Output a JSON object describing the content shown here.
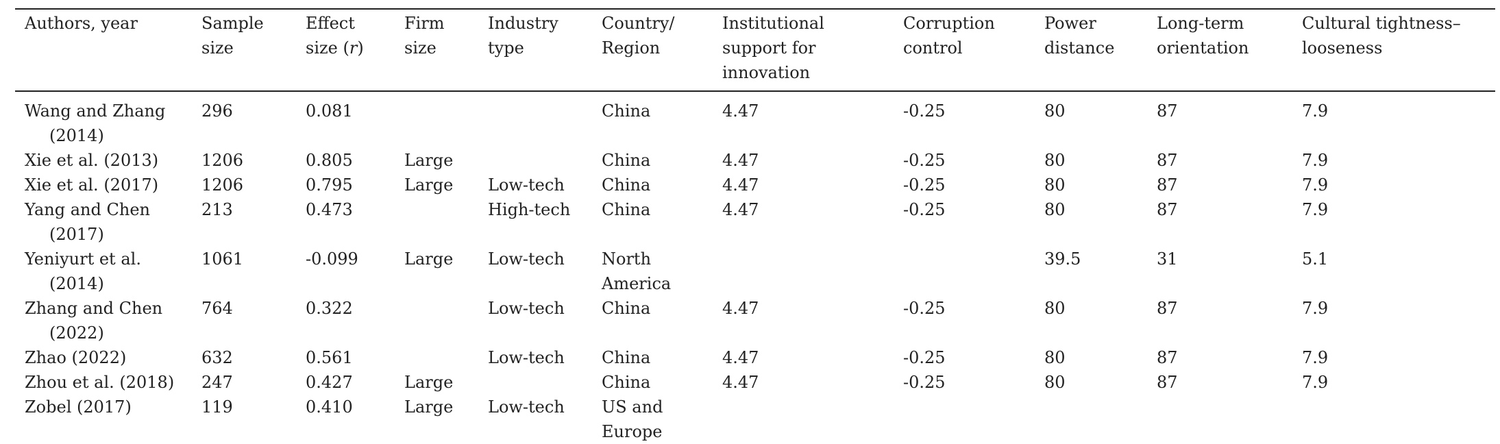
{
  "headers": {
    "authors": "Authors, year",
    "sample_size": "Sample size",
    "effect_prefix": "Effect size (",
    "effect_r": "r",
    "effect_suffix": ")",
    "firm_size": "Firm size",
    "industry_type": "Industry type",
    "country_region": "Country/ Region",
    "institutional": "Institutional support for innovation",
    "corruption": "Corruption control",
    "power_distance": "Power distance",
    "long_term": "Long-term orientation",
    "cultural": "Cultural tightness–looseness"
  },
  "rows": [
    {
      "author": "Wang and Zhang (2014)",
      "sample": "296",
      "effect": "0.081",
      "firm": "",
      "industry": "",
      "country": "China",
      "inst": "4.47",
      "corr": "-0.25",
      "power": "80",
      "lto": "87",
      "cult": "7.9"
    },
    {
      "author": "Xie et al. (2013)",
      "sample": "1206",
      "effect": "0.805",
      "firm": "Large",
      "industry": "",
      "country": "China",
      "inst": "4.47",
      "corr": "-0.25",
      "power": "80",
      "lto": "87",
      "cult": "7.9"
    },
    {
      "author": "Xie et al. (2017)",
      "sample": "1206",
      "effect": "0.795",
      "firm": "Large",
      "industry": "Low-tech",
      "country": "China",
      "inst": "4.47",
      "corr": "-0.25",
      "power": "80",
      "lto": "87",
      "cult": "7.9"
    },
    {
      "author": "Yang and Chen (2017)",
      "sample": "213",
      "effect": "0.473",
      "firm": "",
      "industry": "High-tech",
      "country": "China",
      "inst": "4.47",
      "corr": "-0.25",
      "power": "80",
      "lto": "87",
      "cult": "7.9"
    },
    {
      "author": "Yeniyurt et al. (2014)",
      "sample": "1061",
      "effect": "-0.099",
      "firm": "Large",
      "industry": "Low-tech",
      "country": "North America",
      "inst": "",
      "corr": "",
      "power": "39.5",
      "lto": "31",
      "cult": "5.1"
    },
    {
      "author": "Zhang and Chen (2022)",
      "sample": "764",
      "effect": "0.322",
      "firm": "",
      "industry": "Low-tech",
      "country": "China",
      "inst": "4.47",
      "corr": "-0.25",
      "power": "80",
      "lto": "87",
      "cult": "7.9"
    },
    {
      "author": "Zhao (2022)",
      "sample": "632",
      "effect": "0.561",
      "firm": "",
      "industry": "Low-tech",
      "country": "China",
      "inst": "4.47",
      "corr": "-0.25",
      "power": "80",
      "lto": "87",
      "cult": "7.9"
    },
    {
      "author": "Zhou et al. (2018)",
      "sample": "247",
      "effect": "0.427",
      "firm": "Large",
      "industry": "",
      "country": "China",
      "inst": "4.47",
      "corr": "-0.25",
      "power": "80",
      "lto": "87",
      "cult": "7.9"
    },
    {
      "author": "Zobel (2017)",
      "sample": "119",
      "effect": "0.410",
      "firm": "Large",
      "industry": "Low-tech",
      "country": "US and Europe",
      "inst": "",
      "corr": "",
      "power": "",
      "lto": "",
      "cult": ""
    }
  ]
}
